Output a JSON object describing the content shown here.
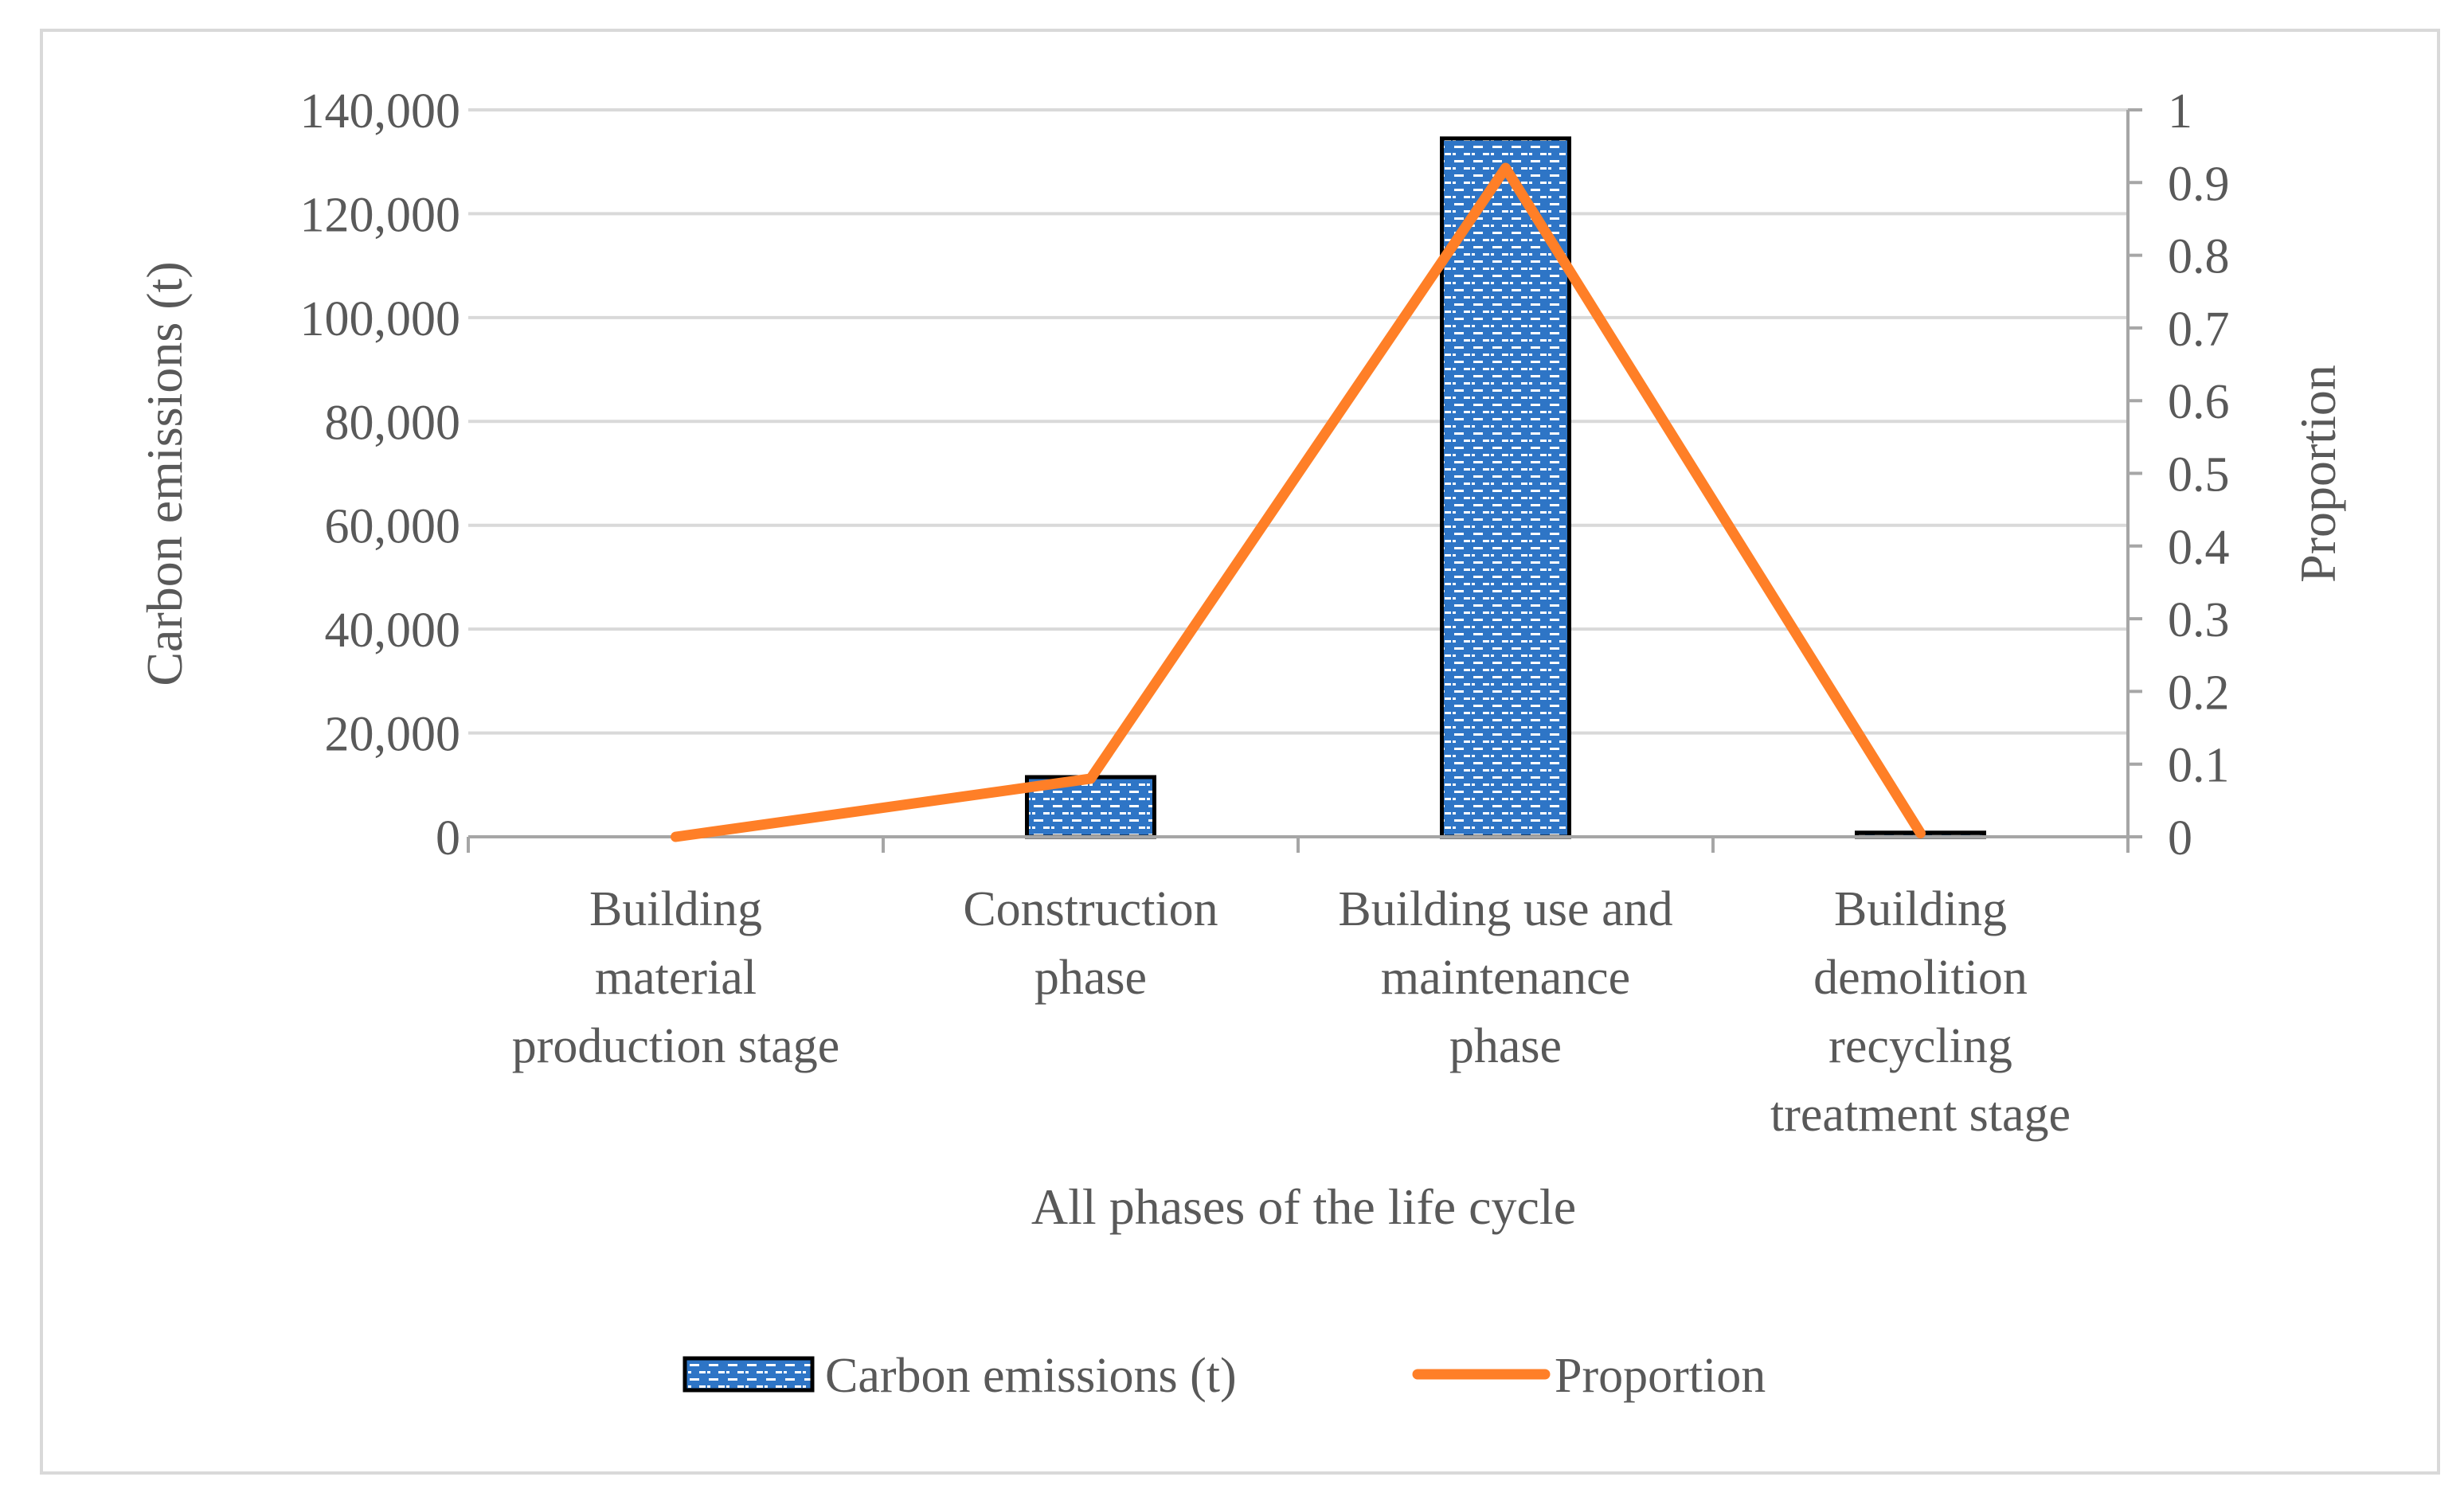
{
  "chart_data": {
    "type": "bar+line",
    "categories": [
      [
        "Building",
        "material",
        "production stage"
      ],
      [
        "Construction",
        "phase"
      ],
      [
        "Building use and",
        "maintenance",
        "phase"
      ],
      [
        "Building",
        "demolition",
        "recycling",
        "treatment stage"
      ]
    ],
    "series": [
      {
        "name": "Carbon emissions (t)",
        "type": "bar",
        "axis": "left",
        "values": [
          0,
          11500,
          134500,
          800
        ],
        "color": "#2e75c6",
        "pattern": "dashed-white-on-blue"
      },
      {
        "name": "Proportion",
        "type": "line",
        "axis": "right",
        "values": [
          0,
          0.08,
          0.92,
          0.005
        ],
        "color": "#ff7f27"
      }
    ],
    "xlabel": "All phases of the life cycle",
    "ylabel": "Carbon emissions (t)",
    "y2label": "Proportion",
    "ylim": [
      0,
      140000
    ],
    "y2lim": [
      0,
      1
    ],
    "yticks": [
      "0",
      "20,000",
      "40,000",
      "60,000",
      "80,000",
      "100,000",
      "120,000",
      "140,000"
    ],
    "y2ticks": [
      "0",
      "0.1",
      "0.2",
      "0.3",
      "0.4",
      "0.5",
      "0.6",
      "0.7",
      "0.8",
      "0.9",
      "1"
    ],
    "grid": true,
    "legend_position": "bottom"
  }
}
